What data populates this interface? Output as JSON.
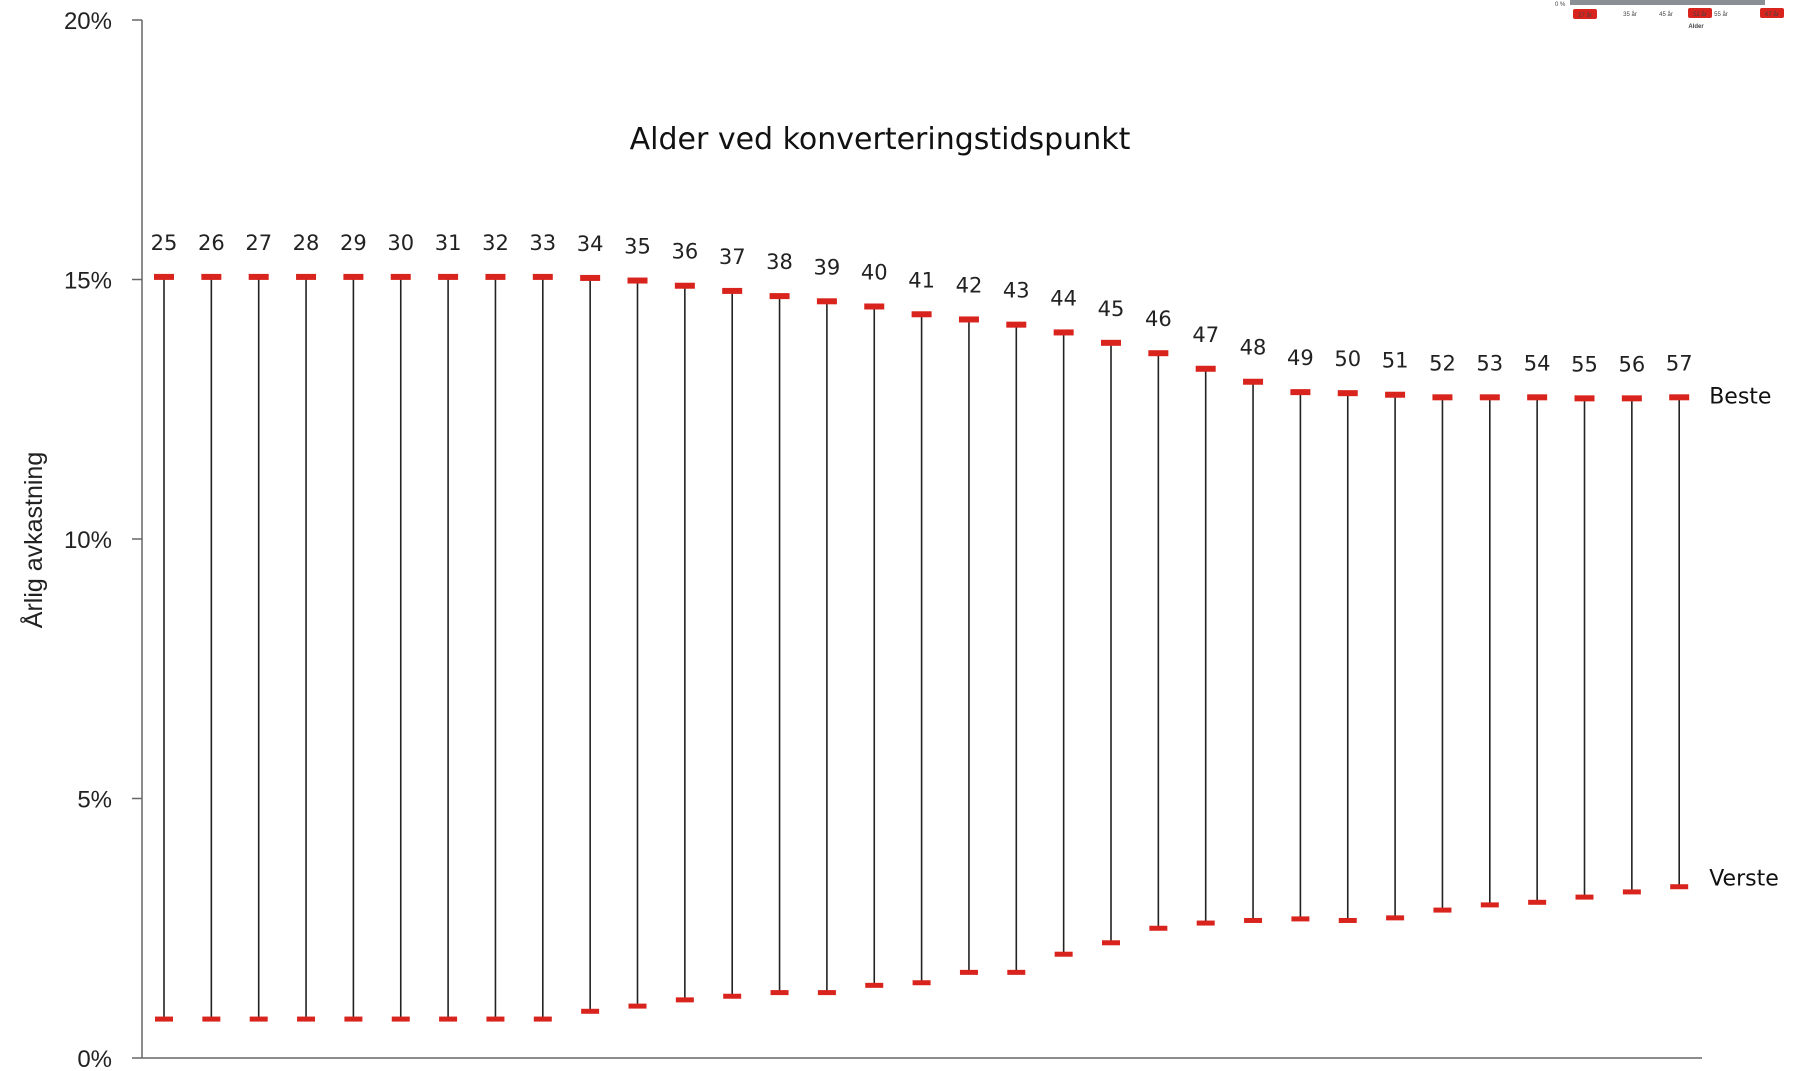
{
  "chart_data": {
    "type": "range",
    "title": "Alder ved konverteringstidspunkt",
    "ylabel": "Årlig avkastning",
    "xlabel": "",
    "ylim": [
      0,
      20
    ],
    "y_ticks": [
      "0%",
      "5%",
      "10%",
      "15%",
      "20%"
    ],
    "y_tick_values": [
      0,
      5,
      10,
      15,
      20
    ],
    "grid": false,
    "colors": {
      "marker": "#d9231d",
      "whisker": "#222222",
      "axis": "#666666"
    },
    "categories": [
      "25",
      "26",
      "27",
      "28",
      "29",
      "30",
      "31",
      "32",
      "33",
      "34",
      "35",
      "36",
      "37",
      "38",
      "39",
      "40",
      "41",
      "42",
      "43",
      "44",
      "45",
      "46",
      "47",
      "48",
      "49",
      "50",
      "51",
      "52",
      "53",
      "54",
      "55",
      "56",
      "57"
    ],
    "series": [
      {
        "name": "Beste",
        "values": [
          15.05,
          15.05,
          15.05,
          15.05,
          15.05,
          15.05,
          15.05,
          15.05,
          15.05,
          15.03,
          14.98,
          14.88,
          14.78,
          14.68,
          14.58,
          14.48,
          14.33,
          14.23,
          14.13,
          13.98,
          13.78,
          13.58,
          13.28,
          13.03,
          12.83,
          12.81,
          12.78,
          12.73,
          12.73,
          12.73,
          12.71,
          12.71,
          12.73
        ]
      },
      {
        "name": "Verste",
        "values": [
          0.75,
          0.75,
          0.75,
          0.75,
          0.75,
          0.75,
          0.75,
          0.75,
          0.75,
          0.9,
          1.0,
          1.12,
          1.19,
          1.26,
          1.26,
          1.4,
          1.45,
          1.65,
          1.65,
          2.0,
          2.22,
          2.5,
          2.6,
          2.65,
          2.68,
          2.65,
          2.7,
          2.85,
          2.95,
          3.0,
          3.1,
          3.2,
          3.3
        ]
      }
    ],
    "inset": {
      "zero_label": "0 %",
      "ticks": [
        "35 år",
        "45 år",
        "55 år"
      ],
      "badges": [
        "27 år",
        "52 år",
        "67 år"
      ],
      "xlabel": "Alder"
    }
  }
}
